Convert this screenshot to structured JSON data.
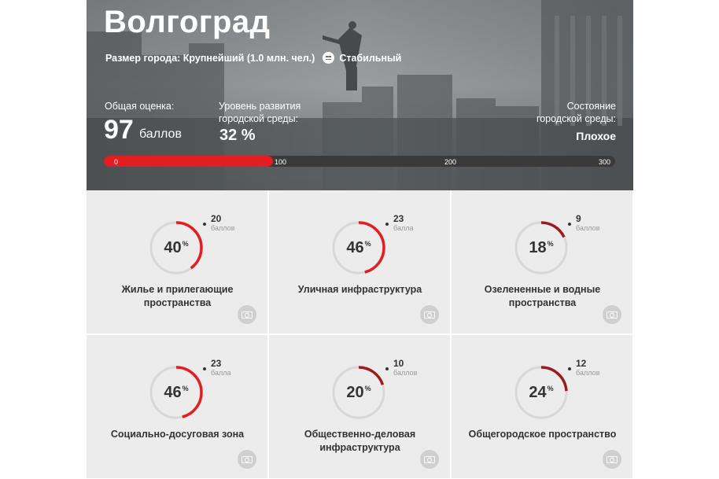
{
  "city": {
    "name": "Волгоград",
    "size_label": "Размер города: Крупнейший (1.0 млн. чел.)",
    "trend_label": "Стабильный"
  },
  "overall": {
    "label": "Общая оценка:",
    "value": "97",
    "unit": "баллов",
    "score": 97,
    "max": 300
  },
  "development": {
    "label_line1": "Уровень развития",
    "label_line2": "городской среды:",
    "value": "32 %"
  },
  "state": {
    "label_line1": "Состояние",
    "label_line2": "городской среды:",
    "value": "Плохое"
  },
  "scale_ticks": [
    "0",
    "100",
    "200",
    "300"
  ],
  "colors": {
    "accent": "#e11e22",
    "ring_track": "#d8d8d8",
    "dark_ring": "#9b1b1f"
  },
  "categories": [
    {
      "pct": "40",
      "pct_value": 40,
      "points": "20",
      "points_label": "баллов",
      "title": "Жилье и прилегающие пространства"
    },
    {
      "pct": "46",
      "pct_value": 46,
      "points": "23",
      "points_label": "балла",
      "title": "Уличная инфраструктура"
    },
    {
      "pct": "18",
      "pct_value": 18,
      "points": "9",
      "points_label": "баллов",
      "title": "Озелененные и водные пространства"
    },
    {
      "pct": "46",
      "pct_value": 46,
      "points": "23",
      "points_label": "балла",
      "title": "Социально-досуговая зона"
    },
    {
      "pct": "20",
      "pct_value": 20,
      "points": "10",
      "points_label": "баллов",
      "title": "Общественно-деловая инфраструктура"
    },
    {
      "pct": "24",
      "pct_value": 24,
      "points": "12",
      "points_label": "баллов",
      "title": "Общегородское пространство"
    }
  ],
  "icons": {
    "stable": "equals-circle-icon",
    "photo": "camera-icon"
  }
}
